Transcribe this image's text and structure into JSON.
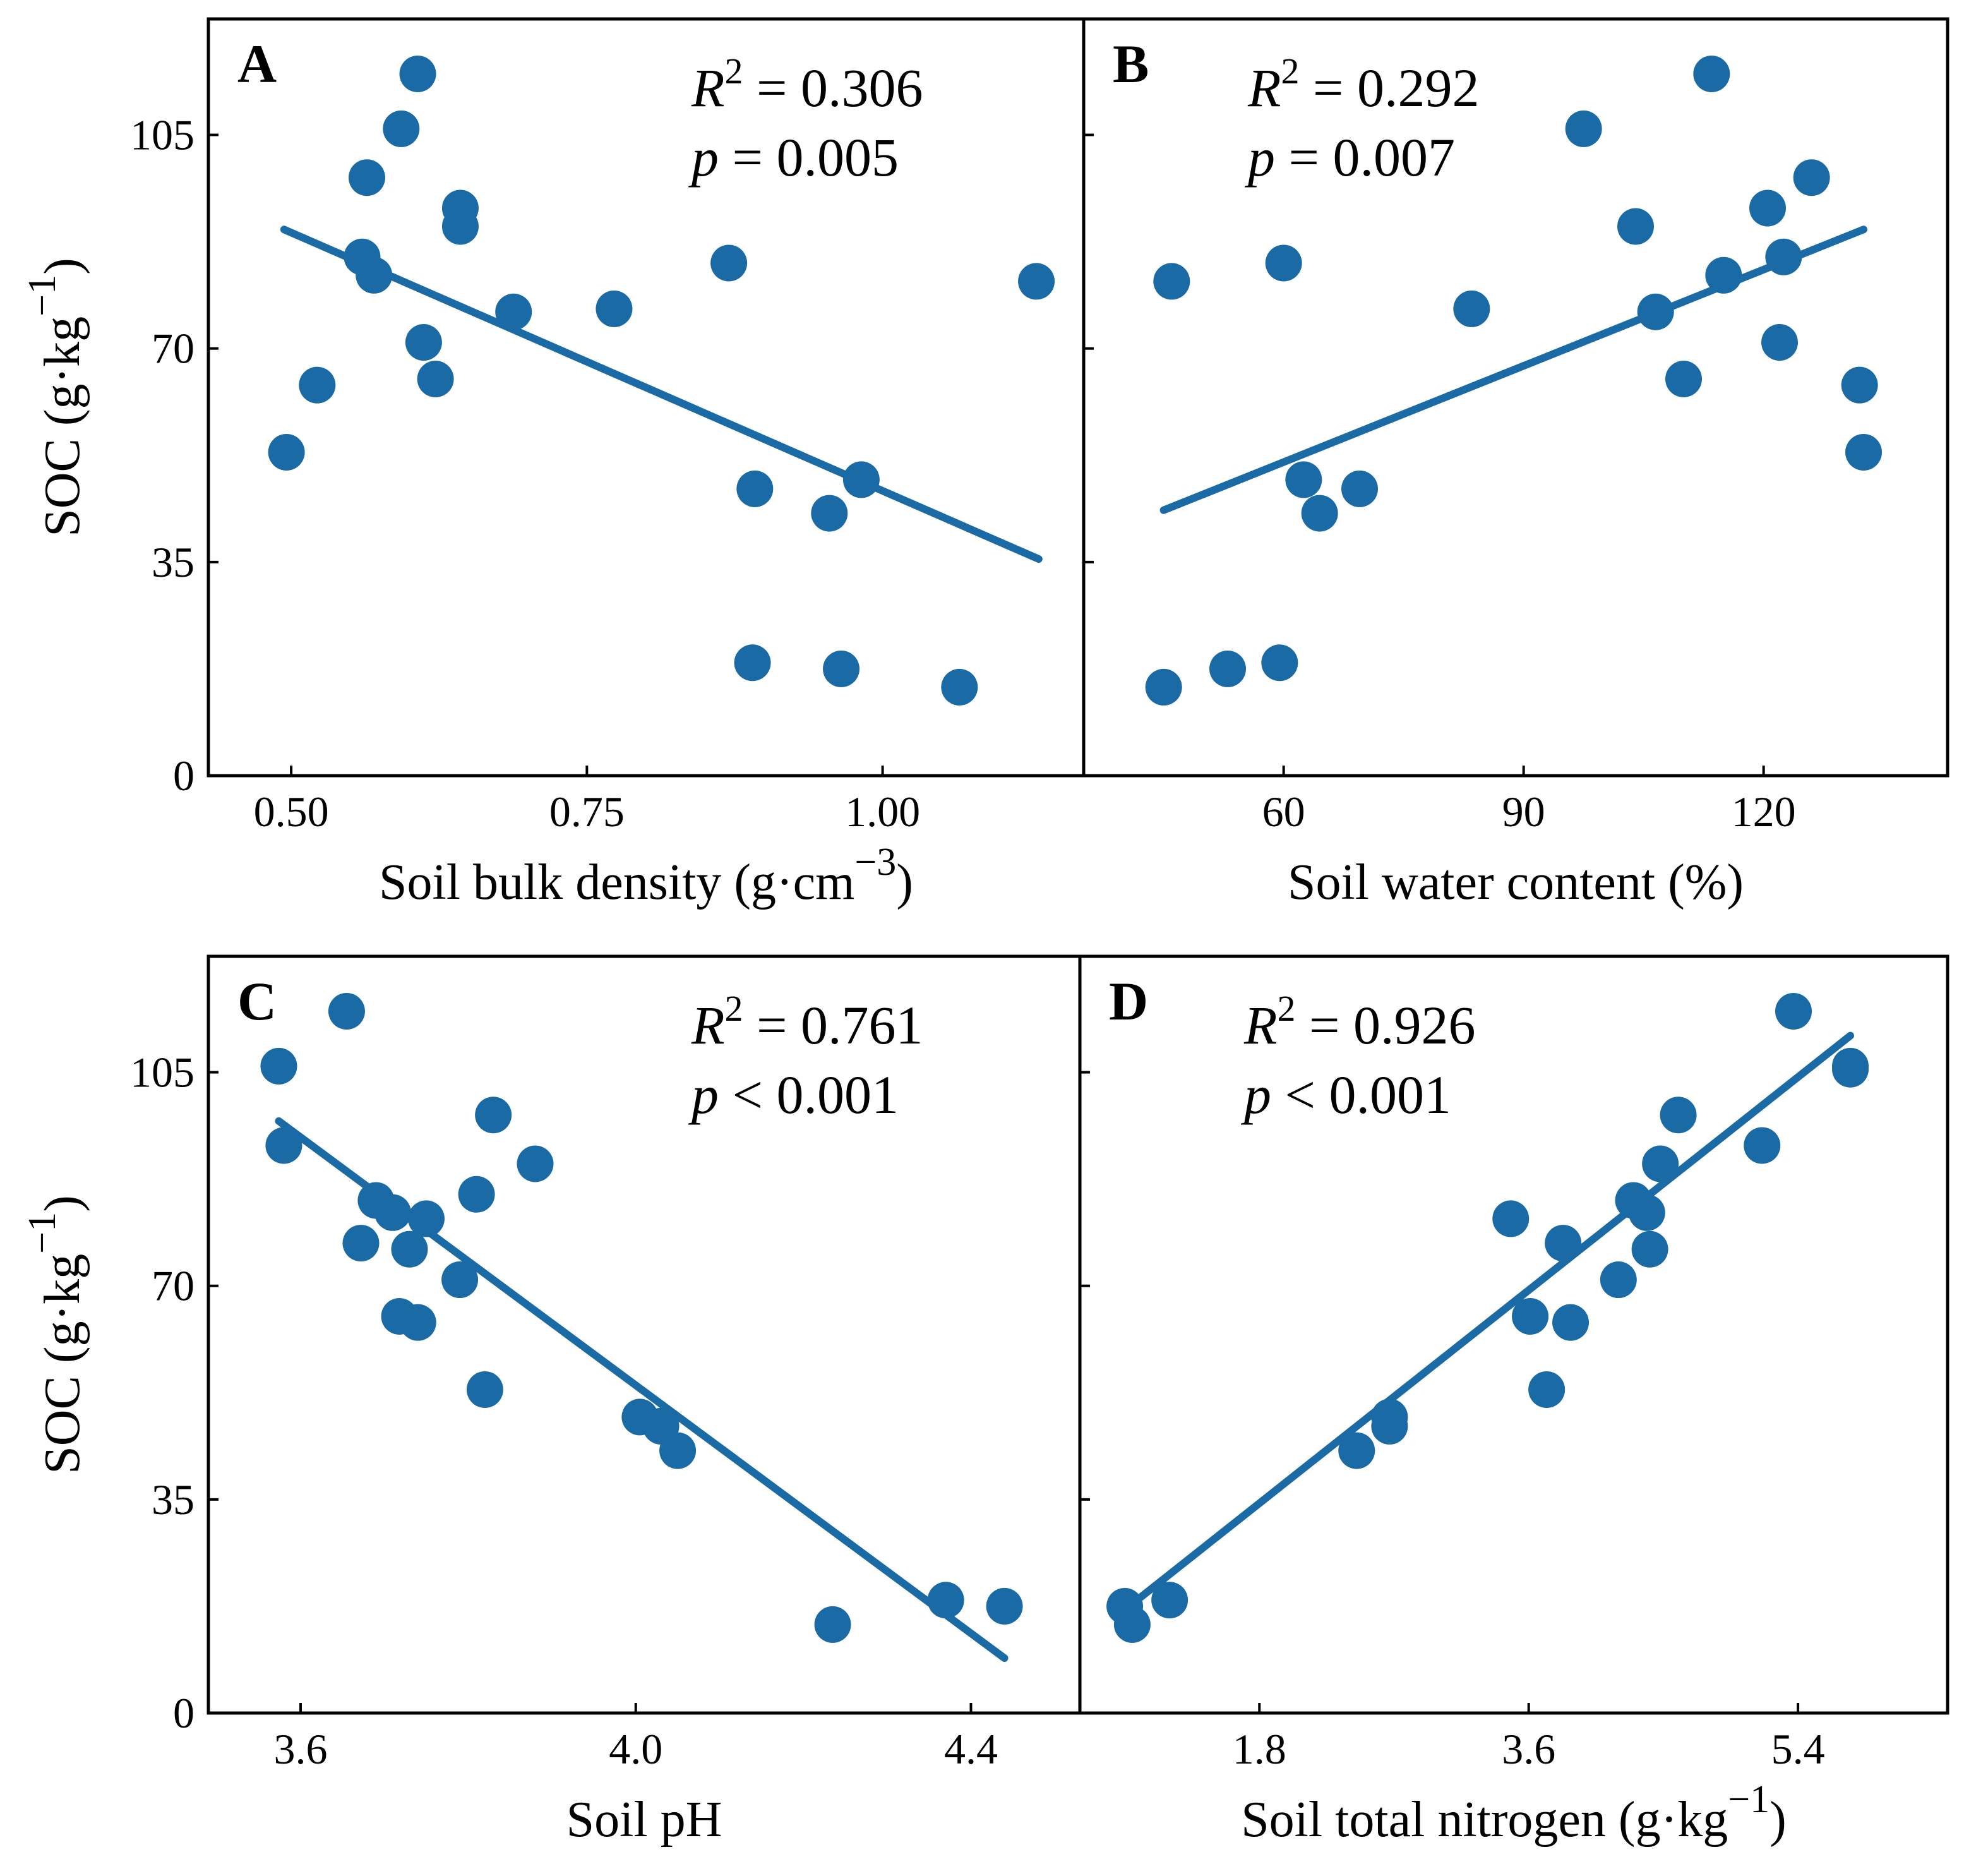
{
  "colors": {
    "marker": "#1a6aa6",
    "axis": "#000000"
  },
  "figure": {
    "ylabel": "SOC (g·kg",
    "ylabel_sup": "−1",
    "ylabel_close": ")"
  },
  "chart_data": [
    {
      "id": "A",
      "type": "scatter",
      "letter": "A",
      "xlabel": "Soil bulk density (g·cm",
      "xlabel_sup": "−3",
      "xlabel_close": ")",
      "ylabel": "SOC (g·kg−1)",
      "xlim": [
        0.43,
        1.17
      ],
      "ylim": [
        0,
        124
      ],
      "xticks": [
        0.5,
        0.75,
        1.0
      ],
      "xtick_labels": [
        "0.50",
        "0.75",
        "1.00"
      ],
      "yticks": [
        0,
        35,
        70,
        105
      ],
      "ytick_labels": [
        "0",
        "35",
        "70",
        "105"
      ],
      "show_yticklabels": true,
      "stats": {
        "r2_label": "R",
        "r2_exp": "2",
        "r2_value": " = 0.306",
        "p_label": "p",
        "p_value": " = 0.005"
      },
      "points": [
        {
          "x": 0.496,
          "y": 53
        },
        {
          "x": 0.522,
          "y": 64
        },
        {
          "x": 0.56,
          "y": 85
        },
        {
          "x": 0.564,
          "y": 98
        },
        {
          "x": 0.57,
          "y": 82
        },
        {
          "x": 0.593,
          "y": 106
        },
        {
          "x": 0.607,
          "y": 115
        },
        {
          "x": 0.612,
          "y": 71
        },
        {
          "x": 0.622,
          "y": 65
        },
        {
          "x": 0.643,
          "y": 93
        },
        {
          "x": 0.643,
          "y": 90
        },
        {
          "x": 0.688,
          "y": 76
        },
        {
          "x": 0.773,
          "y": 76.5
        },
        {
          "x": 0.87,
          "y": 84
        },
        {
          "x": 0.892,
          "y": 47
        },
        {
          "x": 0.89,
          "y": 18.5
        },
        {
          "x": 0.955,
          "y": 43
        },
        {
          "x": 0.965,
          "y": 17.5
        },
        {
          "x": 0.982,
          "y": 48.5
        },
        {
          "x": 1.065,
          "y": 14.5
        },
        {
          "x": 1.13,
          "y": 81
        }
      ],
      "fit": {
        "x": [
          0.494,
          1.132
        ],
        "y": [
          89.5,
          35.5
        ]
      }
    },
    {
      "id": "B",
      "type": "scatter",
      "letter": "B",
      "xlabel": "Soil water content (%)",
      "xlabel_sup": "",
      "xlabel_close": "",
      "ylabel": "SOC (g·kg−1)",
      "xlim": [
        35,
        143
      ],
      "ylim": [
        0,
        124
      ],
      "xticks": [
        60,
        90,
        120
      ],
      "xtick_labels": [
        "60",
        "90",
        "120"
      ],
      "yticks": [
        0,
        35,
        70,
        105
      ],
      "ytick_labels": [
        "0",
        "35",
        "70",
        "105"
      ],
      "show_yticklabels": false,
      "stats": {
        "r2_label": "R",
        "r2_exp": "2",
        "r2_value": " = 0.292",
        "p_label": "p",
        "p_value": " = 0.007"
      },
      "points": [
        {
          "x": 45,
          "y": 14.5
        },
        {
          "x": 46,
          "y": 81
        },
        {
          "x": 53,
          "y": 17.5
        },
        {
          "x": 59.5,
          "y": 18.5
        },
        {
          "x": 60,
          "y": 84
        },
        {
          "x": 62.5,
          "y": 48.5
        },
        {
          "x": 64.5,
          "y": 43
        },
        {
          "x": 69.5,
          "y": 47
        },
        {
          "x": 83.5,
          "y": 76.5
        },
        {
          "x": 97.5,
          "y": 106
        },
        {
          "x": 104,
          "y": 90
        },
        {
          "x": 106.5,
          "y": 76
        },
        {
          "x": 110,
          "y": 65
        },
        {
          "x": 113.5,
          "y": 115
        },
        {
          "x": 115,
          "y": 82
        },
        {
          "x": 120.5,
          "y": 93
        },
        {
          "x": 122,
          "y": 71
        },
        {
          "x": 122.5,
          "y": 85
        },
        {
          "x": 126,
          "y": 98
        },
        {
          "x": 132,
          "y": 64
        },
        {
          "x": 132.5,
          "y": 53
        }
      ],
      "fit": {
        "x": [
          45,
          132.5
        ],
        "y": [
          43.5,
          89.5
        ]
      }
    },
    {
      "id": "C",
      "type": "scatter",
      "letter": "C",
      "xlabel": "Soil pH",
      "xlabel_sup": "",
      "xlabel_close": "",
      "ylabel": "SOC (g·kg−1)",
      "xlim": [
        3.49,
        4.53
      ],
      "ylim": [
        0,
        124
      ],
      "xticks": [
        3.6,
        4.0,
        4.4
      ],
      "xtick_labels": [
        "3.6",
        "4.0",
        "4.4"
      ],
      "yticks": [
        0,
        35,
        70,
        105
      ],
      "ytick_labels": [
        "0",
        "35",
        "70",
        "105"
      ],
      "show_yticklabels": true,
      "stats": {
        "r2_label": "R",
        "r2_exp": "2",
        "r2_value": " = 0.761",
        "p_label": "p",
        "p_value": " < 0.001"
      },
      "points": [
        {
          "x": 3.574,
          "y": 106
        },
        {
          "x": 3.58,
          "y": 93
        },
        {
          "x": 3.655,
          "y": 115
        },
        {
          "x": 3.672,
          "y": 77
        },
        {
          "x": 3.69,
          "y": 84
        },
        {
          "x": 3.71,
          "y": 82
        },
        {
          "x": 3.718,
          "y": 65
        },
        {
          "x": 3.73,
          "y": 76
        },
        {
          "x": 3.74,
          "y": 64
        },
        {
          "x": 3.75,
          "y": 81
        },
        {
          "x": 3.79,
          "y": 71
        },
        {
          "x": 3.81,
          "y": 85
        },
        {
          "x": 3.82,
          "y": 53
        },
        {
          "x": 3.83,
          "y": 98
        },
        {
          "x": 3.88,
          "y": 90
        },
        {
          "x": 4.005,
          "y": 48.5
        },
        {
          "x": 4.03,
          "y": 47
        },
        {
          "x": 4.05,
          "y": 43
        },
        {
          "x": 4.235,
          "y": 14.5
        },
        {
          "x": 4.37,
          "y": 18.5
        },
        {
          "x": 4.44,
          "y": 17.5
        }
      ],
      "fit": {
        "x": [
          3.574,
          4.44
        ],
        "y": [
          97,
          9
        ]
      }
    },
    {
      "id": "D",
      "type": "scatter",
      "letter": "D",
      "xlabel": "Soil total nitrogen (g·kg",
      "xlabel_sup": "−1",
      "xlabel_close": ")",
      "ylabel": "SOC (g·kg−1)",
      "xlim": [
        0.6,
        6.4
      ],
      "ylim": [
        0,
        124
      ],
      "xticks": [
        1.8,
        3.6,
        5.4
      ],
      "xtick_labels": [
        "1.8",
        "3.6",
        "5.4"
      ],
      "yticks": [
        0,
        35,
        70,
        105
      ],
      "ytick_labels": [
        "0",
        "35",
        "70",
        "105"
      ],
      "show_yticklabels": false,
      "stats": {
        "r2_label": "R",
        "r2_exp": "2",
        "r2_value": " = 0.926",
        "p_label": "p",
        "p_value": " < 0.001"
      },
      "points": [
        {
          "x": 0.9,
          "y": 17.5
        },
        {
          "x": 0.95,
          "y": 14.5
        },
        {
          "x": 1.2,
          "y": 18.5
        },
        {
          "x": 2.45,
          "y": 43
        },
        {
          "x": 2.67,
          "y": 47
        },
        {
          "x": 2.67,
          "y": 48.5
        },
        {
          "x": 3.48,
          "y": 81
        },
        {
          "x": 3.61,
          "y": 65
        },
        {
          "x": 3.72,
          "y": 53
        },
        {
          "x": 3.83,
          "y": 77
        },
        {
          "x": 3.88,
          "y": 64
        },
        {
          "x": 4.2,
          "y": 71
        },
        {
          "x": 4.3,
          "y": 84
        },
        {
          "x": 4.39,
          "y": 82
        },
        {
          "x": 4.41,
          "y": 76
        },
        {
          "x": 4.48,
          "y": 90
        },
        {
          "x": 4.6,
          "y": 98
        },
        {
          "x": 5.16,
          "y": 93
        },
        {
          "x": 5.37,
          "y": 115
        },
        {
          "x": 5.75,
          "y": 106
        },
        {
          "x": 5.75,
          "y": 105.5
        }
      ],
      "fit": {
        "x": [
          0.93,
          5.75
        ],
        "y": [
          17.5,
          111
        ]
      }
    }
  ]
}
